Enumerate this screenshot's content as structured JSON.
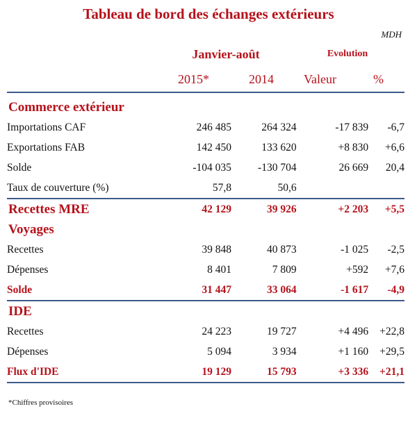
{
  "title": "Tableau de bord des échanges extérieurs",
  "unit": "MDH",
  "period": "Janvier-août",
  "evolution": "Evolution",
  "columns": {
    "y2015": "2015*",
    "y2014": "2014",
    "valeur": "Valeur",
    "pct": "%"
  },
  "sections": [
    {
      "label": "Commerce extérieur",
      "rows": [
        {
          "label": "Importations CAF",
          "v2015": "246 485",
          "v2014": "264 324",
          "valeur": "-17 839",
          "pct": "-6,7"
        },
        {
          "label": "Exportations FAB",
          "v2015": "142 450",
          "v2014": "133 620",
          "valeur": "+8 830",
          "pct": "+6,6"
        },
        {
          "label": "Solde",
          "v2015": "-104 035",
          "v2014": "-130 704",
          "valeur": "26 669",
          "pct": "20,4"
        },
        {
          "label": "Taux de couverture (%)",
          "v2015": "57,8",
          "v2014": "50,6",
          "valeur": "",
          "pct": ""
        }
      ]
    },
    {
      "label": "Recettes MRE",
      "v2015": "42 129",
      "v2014": "39 926",
      "valeur": "+2 203",
      "pct": "+5,5"
    },
    {
      "label": "Voyages",
      "rows": [
        {
          "label": "Recettes",
          "v2015": "39 848",
          "v2014": "40 873",
          "valeur": "-1 025",
          "pct": "-2,5"
        },
        {
          "label": "Dépenses",
          "v2015": "8 401",
          "v2014": "7 809",
          "valeur": "+592",
          "pct": "+7,6"
        },
        {
          "label": "Solde",
          "v2015": "31 447",
          "v2014": "33 064",
          "valeur": "-1 617",
          "pct": "-4,9"
        }
      ]
    },
    {
      "label": "IDE",
      "rows": [
        {
          "label": "Recettes",
          "v2015": "24 223",
          "v2014": "19 727",
          "valeur": "+4 496",
          "pct": "+22,8"
        },
        {
          "label": "Dépenses",
          "v2015": "5 094",
          "v2014": "3 934",
          "valeur": "+1 160",
          "pct": "+29,5"
        },
        {
          "label": "Flux d'IDE",
          "v2015": "19 129",
          "v2014": "15 793",
          "valeur": "+3 336",
          "pct": "+21,1"
        }
      ]
    }
  ],
  "footnote": "*Chiffres provisoires"
}
